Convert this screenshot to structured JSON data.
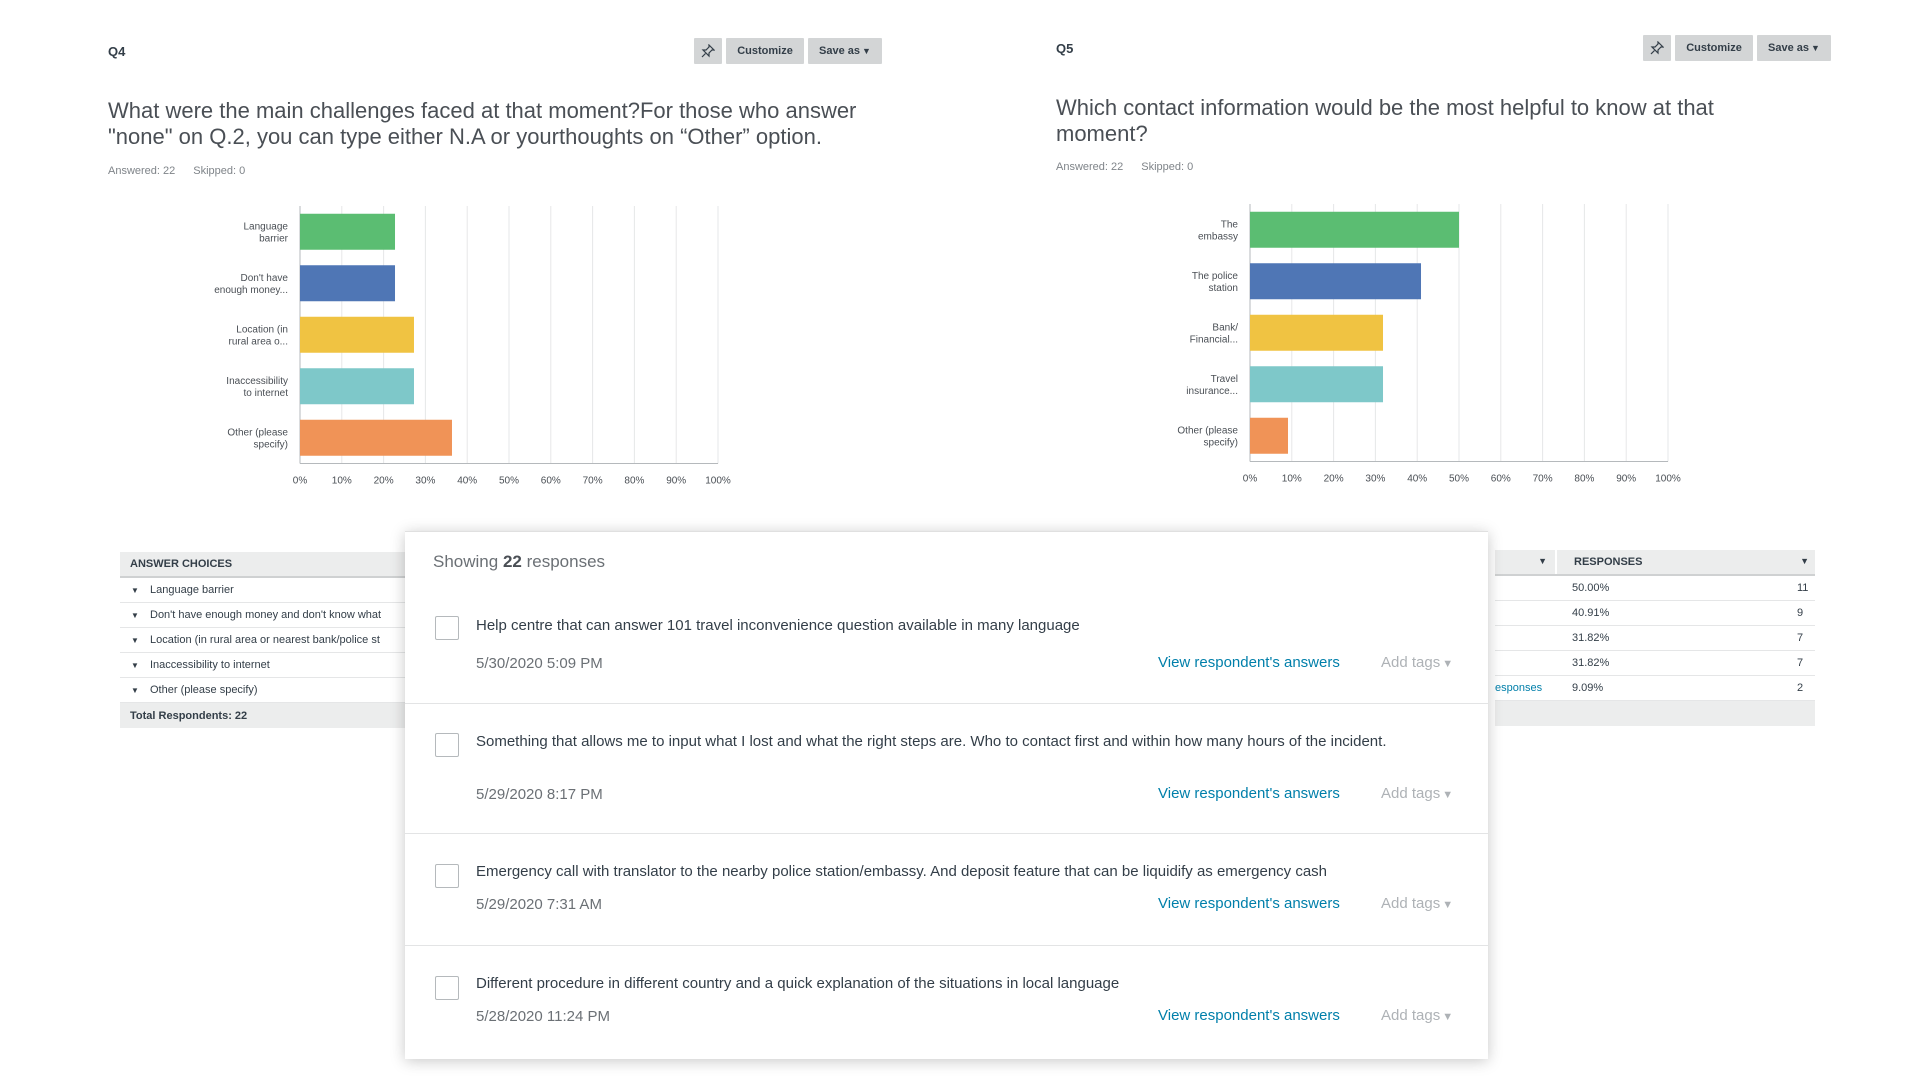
{
  "q4": {
    "id": "Q4",
    "title": "What were the main challenges faced at that moment?For those who answer \"none\" on Q.2, you can type either N.A or yourthoughts on “Other” option.",
    "answered": "Answered: 22",
    "skipped": "Skipped: 0",
    "toolbar": {
      "pin_icon": "pin-icon",
      "customize_label": "Customize",
      "save_label": "Save as"
    }
  },
  "q5": {
    "id": "Q5",
    "title": "Which contact information would be the most helpful to know at that moment?",
    "answered": "Answered: 22",
    "skipped": "Skipped: 0",
    "toolbar": {
      "pin_icon": "pin-icon",
      "customize_label": "Customize",
      "save_label": "Save as"
    }
  },
  "chart_data": [
    {
      "type": "bar",
      "orientation": "horizontal",
      "categories": [
        "Language barrier",
        "Don't have enough money...",
        "Location (in rural area o...",
        "Inaccessibility to internet",
        "Other (please specify)"
      ],
      "values": [
        22.73,
        22.73,
        27.27,
        27.27,
        36.36
      ],
      "xlim": [
        0,
        100
      ],
      "ticks": [
        "0%",
        "10%",
        "20%",
        "30%",
        "40%",
        "50%",
        "60%",
        "70%",
        "80%",
        "90%",
        "100%"
      ],
      "colors": [
        "#5bbd72",
        "#4f76b5",
        "#f0c342",
        "#7ec8c9",
        "#f09357"
      ],
      "grid": true
    },
    {
      "type": "bar",
      "orientation": "horizontal",
      "categories": [
        "The embassy",
        "The police station",
        "Bank/ Financial...",
        "Travel insurance...",
        "Other (please specify)"
      ],
      "values": [
        50.0,
        40.91,
        31.82,
        31.82,
        9.09
      ],
      "xlim": [
        0,
        100
      ],
      "ticks": [
        "0%",
        "10%",
        "20%",
        "30%",
        "40%",
        "50%",
        "60%",
        "70%",
        "80%",
        "90%",
        "100%"
      ],
      "colors": [
        "#5bbd72",
        "#4f76b5",
        "#f0c342",
        "#7ec8c9",
        "#f09357"
      ],
      "grid": true
    }
  ],
  "q4_table": {
    "header": "ANSWER CHOICES",
    "rows": [
      "Language barrier",
      "Don't have enough money and don't know what",
      "Location (in rural area or nearest bank/police st",
      "Inaccessibility to internet",
      "Other (please specify)"
    ],
    "total": "Total Respondents: 22"
  },
  "q5_table": {
    "header": "RESPONSES",
    "rows": [
      {
        "pct": "50.00%",
        "count": "11"
      },
      {
        "pct": "40.91%",
        "count": "9"
      },
      {
        "pct": "31.82%",
        "count": "7"
      },
      {
        "pct": "31.82%",
        "count": "7"
      },
      {
        "pct": "9.09%",
        "count": "2"
      }
    ],
    "link_fragment": "esponses"
  },
  "modal": {
    "showing_prefix": "Showing",
    "count": "22",
    "showing_suffix": "responses",
    "view_label": "View respondent's answers",
    "tags_label": "Add tags",
    "responses": [
      {
        "text": "Help centre that can answer 101 travel inconvenience question available in many language",
        "date": "5/30/2020 5:09 PM"
      },
      {
        "text": "Something that allows me to input what I lost and what the right steps are. Who to contact first and within how many hours of the incident.",
        "date": "5/29/2020 8:17 PM"
      },
      {
        "text": "Emergency call with translator to the nearby police station/embassy. And deposit feature that can be liquidify as emergency cash",
        "date": "5/29/2020 7:31 AM"
      },
      {
        "text": "Different procedure in different country and a quick explanation of the situations in local language",
        "date": "5/28/2020 11:24 PM"
      }
    ]
  }
}
